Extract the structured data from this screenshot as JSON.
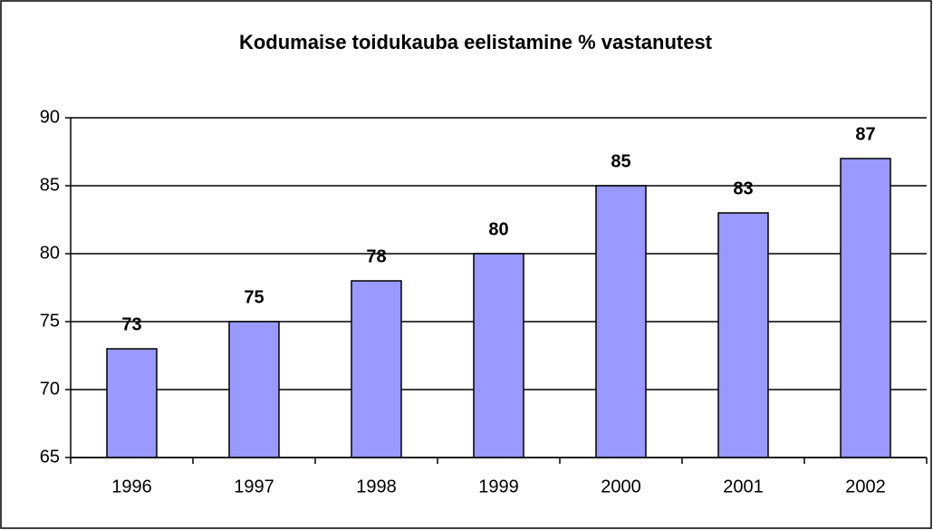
{
  "chart_data": {
    "type": "bar",
    "title": "Kodumaise toidukauba eelistamine % vastanutest",
    "categories": [
      "1996",
      "1997",
      "1998",
      "1999",
      "2000",
      "2001",
      "2002"
    ],
    "values": [
      73,
      75,
      78,
      80,
      85,
      83,
      87
    ],
    "color": "#9999ff",
    "ylim": [
      65,
      90
    ],
    "yticks": [
      65,
      70,
      75,
      80,
      85,
      90
    ],
    "grid": true
  }
}
